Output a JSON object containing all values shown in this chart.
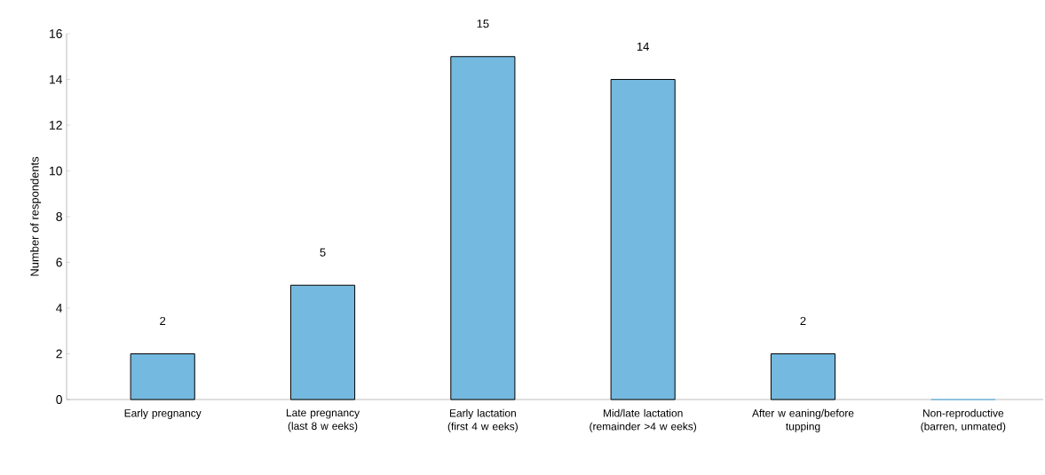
{
  "chart_data": {
    "type": "bar",
    "ylabel": "Number of respondents",
    "categories": [
      "Early pregnancy",
      "Late pregnancy (last 8 w eeks)",
      "Early lactation (first 4 w eeks)",
      "Mid/late lactation (remainder >4 w eeks)",
      "After w eaning/before tupping",
      "Non-reproductive (barren, unmated)"
    ],
    "values": [
      2,
      5,
      15,
      14,
      2,
      0
    ],
    "value_labels": [
      "2",
      "5",
      "15",
      "14",
      "2",
      null
    ],
    "color": "#74b9df",
    "ylim": [
      0,
      16
    ],
    "yticks": [
      0,
      2,
      4,
      6,
      8,
      10,
      12,
      14,
      16
    ],
    "grid": false
  }
}
